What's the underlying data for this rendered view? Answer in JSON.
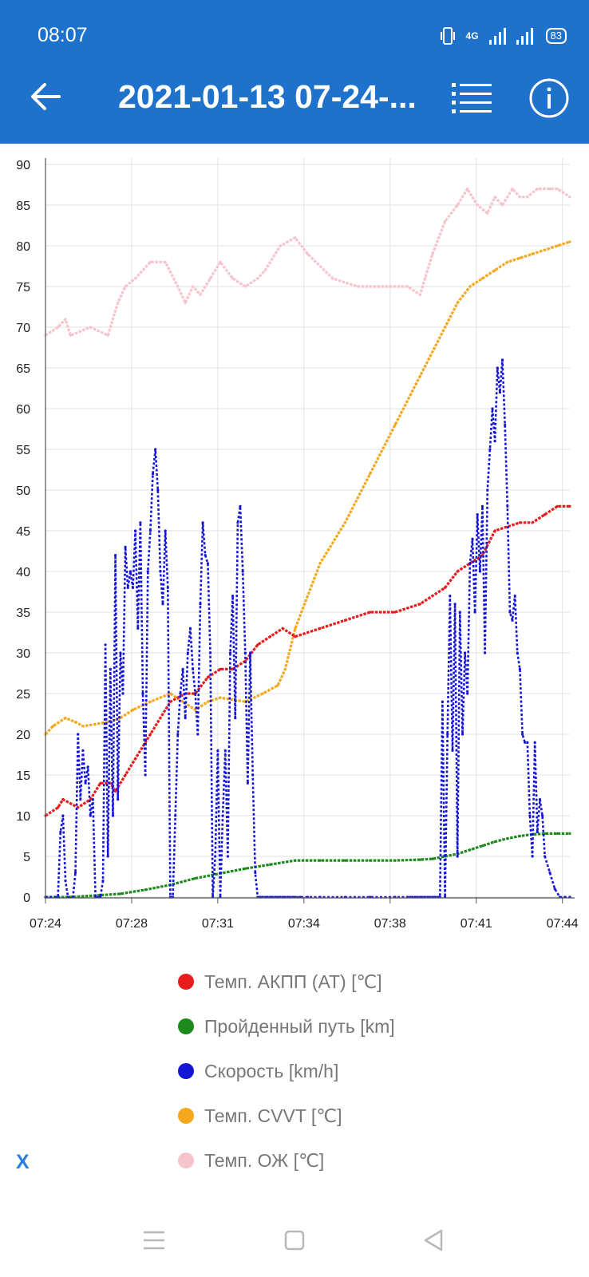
{
  "status_bar": {
    "time": "08:07",
    "network": "4G",
    "battery": "83"
  },
  "app_bar": {
    "title": "2021-01-13 07-24-...",
    "back_icon": "arrow-left-icon",
    "list_icon": "list-icon",
    "info_icon": "info-icon"
  },
  "colors": {
    "app_bar": "#1f72cc",
    "at_temp": "#e81c1c",
    "distance": "#1e8a1e",
    "speed": "#1515d6",
    "cvvt": "#f4a81d",
    "coolant": "#f7c3cc"
  },
  "chart_data": {
    "type": "scatter",
    "x_ticks": [
      "07:24",
      "07:28",
      "07:31",
      "07:34",
      "07:38",
      "07:41",
      "07:44"
    ],
    "y_ticks": [
      "0",
      "5",
      "10",
      "15",
      "20",
      "25",
      "30",
      "35",
      "40",
      "45",
      "50",
      "55",
      "60",
      "65",
      "70",
      "75",
      "80",
      "85",
      "90"
    ],
    "ylim": [
      0,
      90
    ],
    "xlim_minutes": [
      0,
      21
    ],
    "grid": true,
    "legend_position": "bottom",
    "series": [
      {
        "name": "Темп. ОЖ [℃]",
        "color": "#f7c3cc",
        "t": [
          0,
          0.5,
          0.8,
          1,
          1.8,
          2.5,
          2.9,
          3.2,
          3.6,
          4.2,
          4.8,
          5.3,
          5.6,
          5.9,
          6.2,
          6.6,
          7,
          7.5,
          8,
          8.5,
          8.8,
          9.4,
          10,
          10.5,
          11.5,
          12.5,
          13.5,
          14.5,
          15,
          15.2,
          15.5,
          16,
          16.5,
          16.9,
          17.3,
          17.7,
          18,
          18.3,
          18.7,
          19,
          19.3,
          19.7,
          20.2,
          20.5,
          21
        ],
        "v": [
          69,
          70,
          71,
          69,
          70,
          69,
          73,
          75,
          76,
          78,
          78,
          75,
          73,
          75,
          74,
          76,
          78,
          76,
          75,
          76,
          77,
          80,
          81,
          79,
          76,
          75,
          75,
          75,
          74,
          76,
          79,
          83,
          85,
          87,
          85,
          84,
          86,
          85,
          87,
          86,
          86,
          87,
          87,
          87,
          86
        ]
      },
      {
        "name": "Темп. CVVT [℃]",
        "color": "#f4a81d",
        "t": [
          0,
          0.3,
          0.8,
          1.2,
          1.5,
          2.5,
          3,
          3.5,
          4.2,
          5,
          5.5,
          6,
          6.5,
          7,
          8,
          8.7,
          9.3,
          9.6,
          10,
          11,
          12,
          13,
          14,
          15,
          16,
          16.5,
          17,
          17.5,
          18,
          18.5,
          19,
          19.5,
          20,
          20.5,
          21
        ],
        "v": [
          20,
          21,
          22,
          21.5,
          21,
          21.5,
          22,
          23,
          24,
          25,
          24,
          23,
          24,
          24.5,
          24,
          25,
          26,
          28,
          33,
          41,
          46,
          52,
          58,
          64,
          70,
          73,
          75,
          76,
          77,
          78,
          78.5,
          79,
          79.5,
          80,
          80.5
        ]
      },
      {
        "name": "Темп. АКПП (АТ) [℃]",
        "color": "#e81c1c",
        "t": [
          0,
          0.5,
          0.7,
          1.3,
          1.8,
          2.2,
          2.6,
          2.8,
          3.2,
          3.6,
          4.2,
          5,
          5.6,
          6,
          6.5,
          7,
          7.5,
          8,
          8.5,
          9,
          9.5,
          10,
          11,
          12,
          13,
          14,
          15,
          15.5,
          16,
          16.5,
          17,
          17.5,
          18,
          19,
          19.5,
          20,
          20.5,
          21
        ],
        "v": [
          10,
          11,
          12,
          11,
          12,
          14,
          14,
          13,
          15,
          17,
          20,
          24,
          25,
          25,
          27,
          28,
          28,
          29,
          31,
          32,
          33,
          32,
          33,
          34,
          35,
          35,
          36,
          37,
          38,
          40,
          41,
          42,
          45,
          46,
          46,
          47,
          48,
          48
        ]
      },
      {
        "name": "Пройденный путь [km]",
        "color": "#1e8a1e",
        "t": [
          0,
          1,
          2,
          3,
          4,
          5,
          6,
          7,
          8,
          9,
          10,
          11,
          12,
          13,
          14,
          15,
          15.5,
          16,
          16.5,
          17,
          17.5,
          18,
          18.5,
          19,
          19.5,
          20,
          20.5,
          21
        ],
        "v": [
          0,
          0,
          0.2,
          0.4,
          0.9,
          1.5,
          2.3,
          2.9,
          3.5,
          4,
          4.5,
          4.5,
          4.5,
          4.5,
          4.5,
          4.6,
          4.7,
          5,
          5.3,
          5.8,
          6.3,
          6.8,
          7.2,
          7.5,
          7.7,
          7.8,
          7.8,
          7.8
        ]
      },
      {
        "name": "Скорость [km/h]",
        "color": "#1515d6",
        "t": [
          0,
          0.2,
          0.4,
          0.5,
          0.6,
          0.7,
          0.8,
          0.9,
          1.1,
          1.2,
          1.3,
          1.4,
          1.5,
          1.6,
          1.7,
          1.8,
          1.9,
          2,
          2.1,
          2.2,
          2.3,
          2.4,
          2.5,
          2.6,
          2.7,
          2.8,
          2.9,
          3,
          3.1,
          3.2,
          3.3,
          3.4,
          3.5,
          3.6,
          3.7,
          3.8,
          3.9,
          4,
          4.1,
          4.2,
          4.3,
          4.4,
          4.5,
          4.6,
          4.7,
          4.8,
          4.9,
          5,
          5.1,
          5.2,
          5.3,
          5.4,
          5.5,
          5.6,
          5.7,
          5.8,
          5.9,
          6,
          6.1,
          6.2,
          6.3,
          6.4,
          6.5,
          6.6,
          6.7,
          6.8,
          6.9,
          7,
          7.1,
          7.2,
          7.3,
          7.4,
          7.5,
          7.6,
          7.7,
          7.8,
          7.9,
          8,
          8.1,
          8.2,
          8.3,
          8.4,
          8.5,
          8.6,
          8.7,
          8.8,
          8.9,
          9,
          9.1,
          9.2,
          9.3,
          9.4,
          9.5,
          9.6,
          9.7,
          9.8,
          9.9,
          10,
          10.2,
          10.5,
          11,
          12,
          13,
          14,
          14.5,
          14.6,
          14.7,
          14.8,
          14.9,
          15,
          15.1,
          15.2,
          15.3,
          15.4,
          15.5,
          15.6,
          15.7,
          15.8,
          15.9,
          16,
          16.1,
          16.2,
          16.3,
          16.4,
          16.5,
          16.6,
          16.7,
          16.8,
          16.9,
          17,
          17.1,
          17.2,
          17.3,
          17.4,
          17.5,
          17.6,
          17.7,
          17.8,
          17.9,
          18,
          18.1,
          18.2,
          18.3,
          18.4,
          18.5,
          18.6,
          18.7,
          18.8,
          18.9,
          19,
          19.1,
          19.2,
          19.3,
          19.4,
          19.5,
          19.6,
          19.7,
          19.8,
          19.9,
          20,
          20.2,
          20.4,
          20.6,
          20.8,
          21
        ],
        "v": [
          0,
          0,
          0,
          0,
          8,
          10,
          2,
          0,
          0,
          3,
          20,
          12,
          18,
          14,
          16,
          10,
          12,
          0,
          0,
          0,
          2,
          31,
          5,
          28,
          10,
          42,
          12,
          30,
          25,
          43,
          38,
          40,
          38,
          45,
          33,
          46,
          25,
          15,
          40,
          45,
          52,
          55,
          50,
          40,
          36,
          45,
          38,
          0,
          0,
          10,
          20,
          25,
          28,
          22,
          30,
          33,
          28,
          25,
          20,
          36,
          46,
          42,
          41,
          30,
          0,
          5,
          18,
          0,
          10,
          18,
          5,
          30,
          37,
          22,
          46,
          48,
          40,
          30,
          14,
          30,
          15,
          3,
          0,
          0,
          0,
          0,
          0,
          0,
          0,
          0,
          0,
          0,
          0,
          0,
          0,
          0,
          0,
          0,
          0,
          0,
          0,
          0,
          0,
          0,
          0,
          0,
          0,
          0,
          0,
          0,
          0,
          0,
          0,
          0,
          0,
          0,
          0,
          0,
          24,
          0,
          20,
          37,
          18,
          36,
          5,
          35,
          20,
          30,
          25,
          41,
          44,
          35,
          47,
          40,
          48,
          30,
          50,
          55,
          60,
          56,
          65,
          62,
          66,
          58,
          48,
          35,
          34,
          37,
          30,
          28,
          20,
          19,
          19,
          10,
          5,
          19,
          8,
          12,
          10,
          5,
          3,
          1,
          0,
          0,
          0,
          0,
          0
        ]
      }
    ]
  },
  "legend": [
    {
      "label": "Темп. АКПП (АТ) [℃]",
      "color": "#e81c1c"
    },
    {
      "label": "Пройденный путь [km]",
      "color": "#1e8a1e"
    },
    {
      "label": "Скорость [km/h]",
      "color": "#1515d6"
    },
    {
      "label": "Темп. CVVT [℃]",
      "color": "#f4a81d"
    },
    {
      "label": "Темп. ОЖ [℃]",
      "color": "#f7c3cc"
    }
  ],
  "close_label": "X",
  "nav_bar": {
    "menu_icon": "menu-icon",
    "home_icon": "home-icon",
    "back_icon": "back-triangle-icon"
  }
}
